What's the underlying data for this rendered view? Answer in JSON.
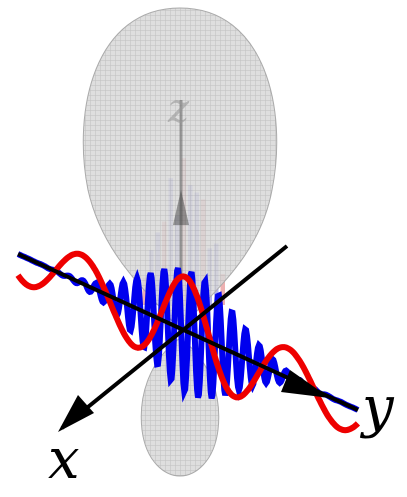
{
  "labels": {
    "x": "x",
    "y": "y",
    "z": "z"
  }
}
